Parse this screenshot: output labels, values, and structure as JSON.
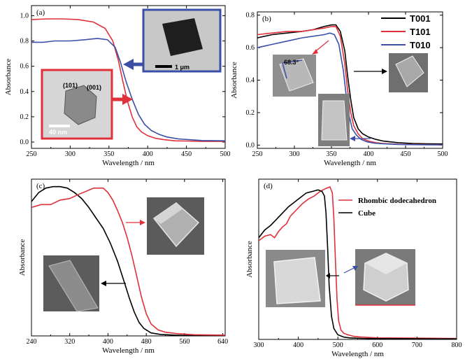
{
  "colors": {
    "black": "#000000",
    "red": "#e0303a",
    "blue": "#3b4fa8",
    "inset_border_red": "#e0303a",
    "inset_border_blue": "#3b4fa8"
  },
  "chart_data": [
    {
      "panel": "(a)",
      "type": "line",
      "xlabel": "Wavelength / nm",
      "ylabel": "Absorbance",
      "xlim": [
        250,
        500
      ],
      "ylim": [
        -0.05,
        1.08
      ],
      "xticks": [
        "250",
        "300",
        "350",
        "400",
        "450",
        "500"
      ],
      "yticks": [
        "0.0",
        "0.2",
        "0.4",
        "0.6",
        "0.8",
        "1.0"
      ],
      "series": [
        {
          "color": "red",
          "x": [
            250,
            270,
            290,
            310,
            330,
            345,
            355,
            362,
            368,
            374,
            380,
            386,
            392,
            400,
            410,
            420,
            435,
            450,
            470,
            500
          ],
          "y": [
            0.97,
            0.975,
            0.975,
            0.97,
            0.95,
            0.9,
            0.8,
            0.65,
            0.48,
            0.32,
            0.2,
            0.12,
            0.08,
            0.05,
            0.03,
            0.02,
            0.01,
            0.008,
            0.005,
            0.005
          ]
        },
        {
          "color": "blue",
          "x": [
            250,
            265,
            280,
            300,
            320,
            335,
            348,
            358,
            365,
            372,
            380,
            388,
            396,
            405,
            415,
            425,
            440,
            455,
            470,
            500
          ],
          "y": [
            0.79,
            0.79,
            0.8,
            0.8,
            0.81,
            0.82,
            0.81,
            0.75,
            0.63,
            0.48,
            0.34,
            0.22,
            0.14,
            0.09,
            0.06,
            0.04,
            0.025,
            0.018,
            0.012,
            0.01
          ]
        }
      ],
      "insets": [
        {
          "border": "blue",
          "scale_label": "1 μm"
        },
        {
          "border": "red",
          "labels": [
            "(101)",
            "(001)"
          ],
          "scale_label": "40 nm"
        }
      ]
    },
    {
      "panel": "(b)",
      "type": "line",
      "xlabel": "Wavelength / nm",
      "ylabel": "Absorbance",
      "xlim": [
        250,
        500
      ],
      "ylim": [
        -0.02,
        0.82
      ],
      "xticks": [
        "250",
        "300",
        "350",
        "400",
        "450",
        "500"
      ],
      "yticks": [
        "0.0",
        "0.2",
        "0.4",
        "0.6",
        "0.8"
      ],
      "legend": [
        "T001",
        "T101",
        "T010"
      ],
      "series": [
        {
          "name": "T001",
          "color": "black",
          "x": [
            250,
            270,
            290,
            310,
            325,
            340,
            350,
            356,
            362,
            368,
            372,
            376,
            380,
            386,
            392,
            400,
            410,
            420,
            440,
            460,
            480,
            500
          ],
          "y": [
            0.66,
            0.68,
            0.69,
            0.7,
            0.71,
            0.73,
            0.74,
            0.74,
            0.7,
            0.58,
            0.42,
            0.28,
            0.17,
            0.1,
            0.07,
            0.05,
            0.035,
            0.025,
            0.015,
            0.01,
            0.008,
            0.007
          ]
        },
        {
          "name": "T101",
          "color": "red",
          "x": [
            250,
            270,
            290,
            310,
            325,
            340,
            350,
            356,
            362,
            368,
            372,
            376,
            380,
            386,
            392,
            400,
            410,
            420,
            440,
            460,
            480,
            500
          ],
          "y": [
            0.68,
            0.69,
            0.7,
            0.7,
            0.71,
            0.72,
            0.73,
            0.73,
            0.67,
            0.5,
            0.33,
            0.2,
            0.12,
            0.07,
            0.04,
            0.025,
            0.015,
            0.01,
            0.005,
            0.004,
            0.003,
            0.002
          ]
        },
        {
          "name": "T010",
          "color": "blue",
          "x": [
            250,
            270,
            290,
            310,
            325,
            340,
            348,
            354,
            360,
            366,
            370,
            374,
            378,
            384,
            390,
            398,
            408,
            420,
            440,
            460,
            480,
            500
          ],
          "y": [
            0.6,
            0.62,
            0.64,
            0.66,
            0.67,
            0.68,
            0.69,
            0.68,
            0.62,
            0.46,
            0.3,
            0.18,
            0.1,
            0.06,
            0.035,
            0.02,
            0.012,
            0.008,
            0.004,
            0.003,
            0.002,
            0.002
          ]
        }
      ],
      "insets": [
        {
          "angle_label": "68.3°"
        }
      ]
    },
    {
      "panel": "(c)",
      "type": "line",
      "xlabel": "Wavelength / nm",
      "ylabel": "Absorbance",
      "xlim": [
        240,
        645
      ],
      "ylim": [
        0,
        1.05
      ],
      "xticks": [
        "240",
        "320",
        "400",
        "480",
        "560",
        "640"
      ],
      "series": [
        {
          "color": "black",
          "x": [
            240,
            255,
            270,
            285,
            300,
            315,
            330,
            345,
            360,
            375,
            390,
            405,
            420,
            435,
            445,
            455,
            465,
            475,
            490,
            510,
            540,
            580,
            645
          ],
          "y": [
            0.9,
            0.96,
            0.99,
            1.0,
            1.0,
            0.99,
            0.96,
            0.92,
            0.86,
            0.79,
            0.72,
            0.62,
            0.5,
            0.35,
            0.25,
            0.16,
            0.09,
            0.05,
            0.02,
            0.01,
            0.005,
            0.002,
            0.0
          ]
        },
        {
          "color": "red",
          "x": [
            240,
            260,
            280,
            300,
            320,
            340,
            355,
            370,
            380,
            390,
            400,
            410,
            420,
            430,
            440,
            450,
            460,
            470,
            480,
            490,
            505,
            520,
            545,
            580,
            645
          ],
          "y": [
            0.86,
            0.88,
            0.88,
            0.91,
            0.92,
            0.95,
            0.97,
            0.99,
            0.99,
            0.99,
            0.96,
            0.91,
            0.84,
            0.76,
            0.66,
            0.54,
            0.4,
            0.26,
            0.15,
            0.08,
            0.04,
            0.025,
            0.015,
            0.008,
            0.005
          ]
        }
      ]
    },
    {
      "panel": "(d)",
      "type": "line",
      "xlabel": "Wavelength / nm",
      "ylabel": "Absorbance",
      "xlim": [
        300,
        800
      ],
      "ylim": [
        0,
        1.04
      ],
      "xticks": [
        "300",
        "400",
        "500",
        "600",
        "700",
        "800"
      ],
      "legend": [
        "Rhombic dodecahedron",
        "Cube"
      ],
      "series": [
        {
          "name": "Rhombic dodecahedron",
          "color": "red",
          "x": [
            300,
            315,
            330,
            340,
            350,
            360,
            370,
            380,
            395,
            410,
            425,
            440,
            455,
            470,
            480,
            486,
            490,
            494,
            498,
            502,
            508,
            515,
            525,
            540,
            560,
            600,
            700,
            800
          ],
          "y": [
            0.64,
            0.67,
            0.68,
            0.66,
            0.7,
            0.73,
            0.75,
            0.8,
            0.84,
            0.88,
            0.91,
            0.93,
            0.96,
            0.98,
            0.99,
            0.95,
            0.78,
            0.5,
            0.25,
            0.12,
            0.06,
            0.04,
            0.03,
            0.02,
            0.015,
            0.01,
            0.008,
            0.006
          ]
        },
        {
          "name": "Cube",
          "color": "black",
          "x": [
            300,
            315,
            330,
            345,
            360,
            375,
            390,
            405,
            420,
            435,
            450,
            460,
            466,
            470,
            474,
            478,
            484,
            490,
            500,
            515,
            530,
            560,
            600,
            700,
            800
          ],
          "y": [
            0.66,
            0.71,
            0.74,
            0.78,
            0.82,
            0.86,
            0.89,
            0.92,
            0.95,
            0.96,
            0.97,
            0.96,
            0.93,
            0.82,
            0.6,
            0.35,
            0.15,
            0.07,
            0.03,
            0.015,
            0.01,
            0.007,
            0.005,
            0.004,
            0.003
          ]
        }
      ]
    }
  ]
}
